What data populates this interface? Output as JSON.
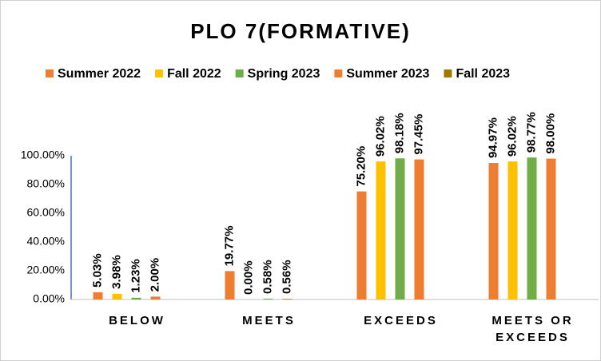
{
  "chart_data": {
    "type": "bar",
    "title": "PLO 7(FORMATIVE)",
    "categories": [
      "BELOW",
      "MEETS",
      "EXCEEDS",
      "MEETS OR EXCEEDS"
    ],
    "series": [
      {
        "name": "Summer 2022",
        "color": "#ed7d31",
        "values": [
          5.03,
          19.77,
          75.2,
          94.97
        ],
        "value_labels": [
          "5.03%",
          "19.77%",
          "75.20%",
          "94.97%"
        ]
      },
      {
        "name": "Fall 2022",
        "color": "#ffc000",
        "values": [
          3.98,
          0.0,
          96.02,
          96.02
        ],
        "value_labels": [
          "3.98%",
          "0.00%",
          "96.02%",
          "96.02%"
        ]
      },
      {
        "name": "Spring 2023",
        "color": "#70ad47",
        "values": [
          1.23,
          0.58,
          98.18,
          98.77
        ],
        "value_labels": [
          "1.23%",
          "0.58%",
          "98.18%",
          "98.77%"
        ]
      },
      {
        "name": "Summer 2023",
        "color": "#ed7d31",
        "values": [
          2.0,
          0.56,
          97.45,
          98.0
        ],
        "value_labels": [
          "2.00%",
          "0.56%",
          "97.45%",
          "98.00%"
        ]
      },
      {
        "name": "Fall 2023",
        "color": "#9c7a00",
        "values": [
          null,
          null,
          null,
          null
        ]
      }
    ],
    "ylim": [
      0,
      100
    ],
    "yticks": [
      {
        "value": 0,
        "label": "0.00%"
      },
      {
        "value": 20,
        "label": "20.00%"
      },
      {
        "value": 40,
        "label": "40.00%"
      },
      {
        "value": 60,
        "label": "60.00%"
      },
      {
        "value": 80,
        "label": "80.00%"
      },
      {
        "value": 100,
        "label": "100.00%"
      }
    ],
    "grid": false,
    "legend": "top"
  }
}
